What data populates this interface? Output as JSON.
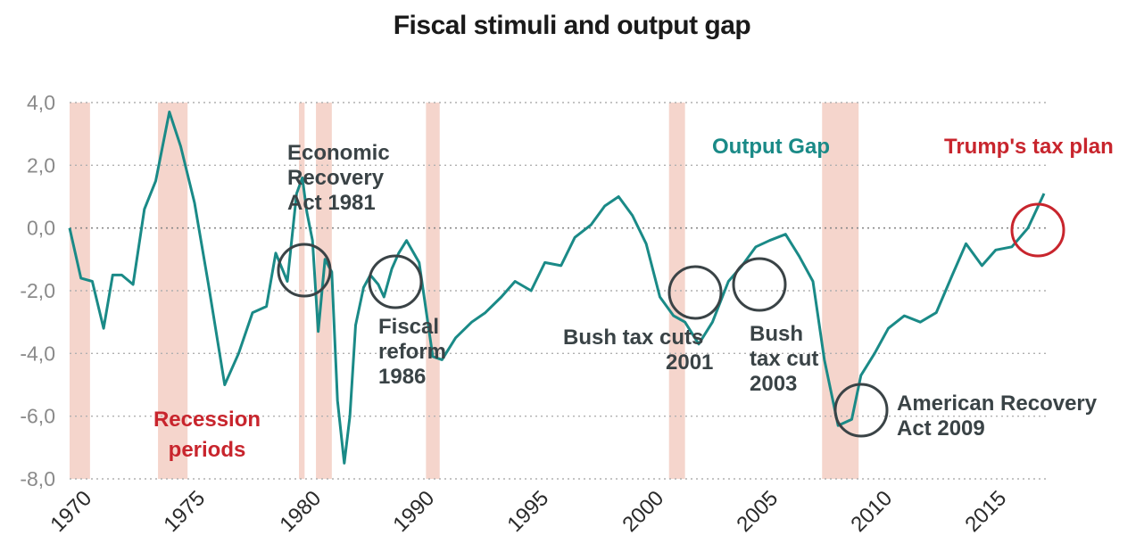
{
  "chart_data": {
    "type": "line",
    "title": "Fiscal stimuli and output gap",
    "xlabel": "",
    "ylabel": "",
    "ylim": [
      -8.0,
      4.0
    ],
    "y_ticks": [
      "4,0",
      "2,0",
      "0,0",
      "-2,0",
      "-4,0",
      "-6,0",
      "-8,0"
    ],
    "x_ticks": [
      "1970",
      "1975",
      "1980",
      "1990",
      "1995",
      "2000",
      "2005",
      "2010",
      "2015"
    ],
    "grid": "horizontal dotted",
    "series": [
      {
        "name": "Output Gap",
        "color": "#1a8a87",
        "x": [
          "1970",
          "1970.5",
          "1971",
          "1971.5",
          "1971.9",
          "1972.3",
          "1972.8",
          "1973.3",
          "1973.8",
          "1974.4",
          "1974.9",
          "1975.5",
          "1976.1",
          "1976.8",
          "1977.4",
          "1978",
          "1978.6",
          "1979",
          "1979.5",
          "1979.9",
          "1980.3",
          "1980.7",
          "1981.2",
          "1981.7",
          "1982.3",
          "1982.9",
          "1983.4",
          "1984",
          "1984.5",
          "1985",
          "1985.7",
          "1986.3",
          "1987",
          "1987.5",
          "1988.2",
          "1988.8",
          "1989.5",
          "1990.3",
          "1990.9",
          "1991.3",
          "1991.9",
          "1992.6",
          "1993.2",
          "1993.9",
          "1994.5",
          "1995.2",
          "1995.8",
          "1996.5",
          "1997.1",
          "1997.8",
          "1998.4",
          "1999",
          "1999.6",
          "2000.2",
          "2000.8",
          "2001.4",
          "2001.9",
          "2002.5",
          "2003.1",
          "2003.8",
          "2004.4",
          "2005",
          "2005.6",
          "2006.3",
          "2006.9",
          "2007.5",
          "2008",
          "2008.6",
          "2009.2",
          "2009.6",
          "2010.2",
          "2010.8",
          "2011.5",
          "2012.2",
          "2012.9",
          "2013.6",
          "2014.2",
          "2014.9",
          "2015.5",
          "2016.2",
          "2016.9",
          "2017.6"
        ],
        "values": [
          0.0,
          -1.6,
          -1.7,
          -3.2,
          -1.5,
          -1.5,
          -1.8,
          0.6,
          1.5,
          3.7,
          2.6,
          0.8,
          -1.8,
          -5.0,
          -4.0,
          -2.7,
          -2.5,
          -0.8,
          -1.7,
          1.1,
          1.6,
          0.5,
          -0.4,
          -3.3,
          -1.0,
          -1.4,
          -5.5,
          -7.5,
          -6.0,
          -3.1,
          -1.9,
          -1.5,
          -1.8,
          -2.2,
          -1.3,
          -0.8,
          -0.4,
          -1.1,
          -4.1,
          -4.2,
          -3.5,
          -3.0,
          -2.7,
          -2.2,
          -1.7,
          -2.0,
          -1.1,
          -1.2,
          -0.3,
          0.1,
          0.7,
          1.0,
          0.4,
          -0.5,
          -2.2,
          -2.8,
          -3.0,
          -3.7,
          -3.0,
          -1.7,
          -1.2,
          -0.6,
          -0.4,
          -0.2,
          -0.9,
          -1.7,
          -4.2,
          -6.3,
          -6.1,
          -4.7,
          -4.0,
          -3.2,
          -2.8,
          -3.0,
          -2.7,
          -1.5,
          -0.5,
          -1.2,
          -0.7,
          -0.6,
          0.0,
          1.1
        ]
      }
    ],
    "recession_periods": [
      [
        1970.0,
        1970.9
      ],
      [
        1973.9,
        1975.2
      ],
      [
        1980.0,
        1980.5
      ],
      [
        1981.5,
        1982.9
      ],
      [
        1990.6,
        1991.2
      ],
      [
        2001.2,
        2001.9
      ],
      [
        2007.9,
        2009.5
      ]
    ],
    "annotations": {
      "recession_label_1": "Recession",
      "recession_label_2": "periods",
      "series_label": "Output Gap",
      "trump_label": "Trump's tax plan",
      "erta_1": "Economic",
      "erta_2": "Recovery",
      "erta_3": "Act 1981",
      "fiscal_1": "Fiscal",
      "fiscal_2": "reform",
      "fiscal_3": "1986",
      "bush1_1": "Bush  tax cuts",
      "bush1_2": "2001",
      "bush2_1": "Bush",
      "bush2_2": "tax cut",
      "bush2_3": "2003",
      "arra_1": "American Recovery",
      "arra_2": "Act  2009"
    },
    "colors": {
      "line": "#1a8a87",
      "recession": "#f5d5cc",
      "red": "#c8252d",
      "dark": "#3a4346",
      "grid": "#b0b0b0",
      "axis_text": "#8a8a8a"
    }
  }
}
